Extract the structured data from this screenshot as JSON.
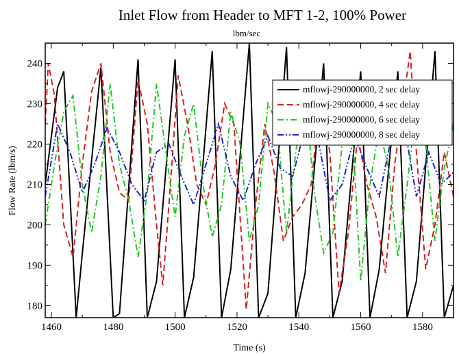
{
  "chart_data": {
    "type": "line",
    "title": "Inlet Flow from Header to MFT 1-2, 100% Power",
    "subtitle": "lbm/sec",
    "xlabel": "Time (s)",
    "ylabel": "Flow Rate (lbm/s)",
    "xlim": [
      1458,
      1590
    ],
    "ylim": [
      177,
      245
    ],
    "x_ticks": [
      1460,
      1480,
      1500,
      1520,
      1540,
      1560,
      1580
    ],
    "y_ticks": [
      180,
      190,
      200,
      210,
      220,
      230,
      240
    ],
    "grid": false,
    "legend_position": "top-right",
    "series": [
      {
        "name": "mflowj-290000000, 2 sec delay",
        "color": "#000000",
        "dash": "solid",
        "x": [
          1458,
          1462,
          1464,
          1468,
          1470,
          1476,
          1480,
          1482,
          1488,
          1491,
          1494,
          1500,
          1503,
          1506,
          1512,
          1515,
          1518,
          1524,
          1527,
          1530,
          1536,
          1539,
          1542,
          1548,
          1551,
          1554,
          1560,
          1563,
          1566,
          1572,
          1575,
          1578,
          1584,
          1587,
          1590
        ],
        "y": [
          210,
          234,
          238,
          177,
          193,
          239,
          177,
          178,
          241,
          177,
          186,
          241,
          177,
          187,
          243,
          177,
          189,
          245,
          177,
          183,
          244,
          177,
          188,
          240,
          177,
          186,
          238,
          177,
          189,
          238,
          177,
          186,
          243,
          177,
          185
        ]
      },
      {
        "name": "mflowj-290000000, 4 sec delay",
        "color": "#d62020",
        "dash": "dashed",
        "x": [
          1458,
          1459,
          1461,
          1464,
          1467,
          1470,
          1473,
          1476,
          1479,
          1482,
          1485,
          1488,
          1491,
          1494,
          1496,
          1498,
          1501,
          1504,
          1507,
          1510,
          1513,
          1516,
          1519,
          1523,
          1526,
          1529,
          1532,
          1535,
          1538,
          1541,
          1544,
          1547,
          1550,
          1553,
          1556,
          1559,
          1562,
          1565,
          1568,
          1571,
          1574,
          1576,
          1578,
          1581,
          1584,
          1587,
          1590
        ],
        "y": [
          225,
          240,
          232,
          200,
          192,
          215,
          233,
          240,
          218,
          208,
          206,
          236,
          225,
          200,
          185,
          205,
          237,
          225,
          210,
          205,
          215,
          230,
          225,
          179,
          205,
          225,
          213,
          196,
          202,
          205,
          210,
          232,
          218,
          183,
          198,
          222,
          210,
          202,
          188,
          215,
          232,
          243,
          218,
          189,
          200,
          218,
          207
        ]
      },
      {
        "name": "mflowj-290000000, 6 sec delay",
        "color": "#20c820",
        "dash": "dash-dot",
        "x": [
          1458,
          1461,
          1464,
          1467,
          1470,
          1473,
          1476,
          1479,
          1482,
          1485,
          1488,
          1491,
          1494,
          1497,
          1500,
          1503,
          1506,
          1509,
          1512,
          1515,
          1518,
          1521,
          1524,
          1527,
          1530,
          1533,
          1536,
          1539,
          1542,
          1545,
          1548,
          1551,
          1554,
          1557,
          1560,
          1563,
          1566,
          1569,
          1572,
          1575,
          1578,
          1581,
          1584,
          1587,
          1590
        ],
        "y": [
          200,
          215,
          228,
          232,
          210,
          198,
          212,
          235,
          215,
          206,
          192,
          208,
          235,
          218,
          202,
          222,
          230,
          210,
          197,
          205,
          228,
          220,
          196,
          205,
          230,
          225,
          198,
          218,
          232,
          208,
          193,
          198,
          220,
          228,
          186,
          210,
          224,
          214,
          192,
          210,
          229,
          220,
          196,
          214,
          225
        ]
      },
      {
        "name": "mflowj-290000000, 8 sec delay",
        "color": "#2020c8",
        "dash": "dash-dot-dot",
        "x": [
          1458,
          1462,
          1466,
          1470,
          1474,
          1478,
          1482,
          1486,
          1490,
          1494,
          1498,
          1502,
          1506,
          1510,
          1514,
          1518,
          1522,
          1526,
          1530,
          1534,
          1538,
          1542,
          1546,
          1550,
          1554,
          1558,
          1562,
          1566,
          1570,
          1574,
          1578,
          1582,
          1586,
          1590
        ],
        "y": [
          207,
          225,
          218,
          208,
          215,
          224,
          218,
          210,
          206,
          218,
          220,
          212,
          205,
          215,
          225,
          212,
          206,
          215,
          222,
          214,
          212,
          224,
          222,
          206,
          210,
          222,
          214,
          207,
          222,
          225,
          207,
          218,
          210,
          213
        ]
      }
    ]
  }
}
